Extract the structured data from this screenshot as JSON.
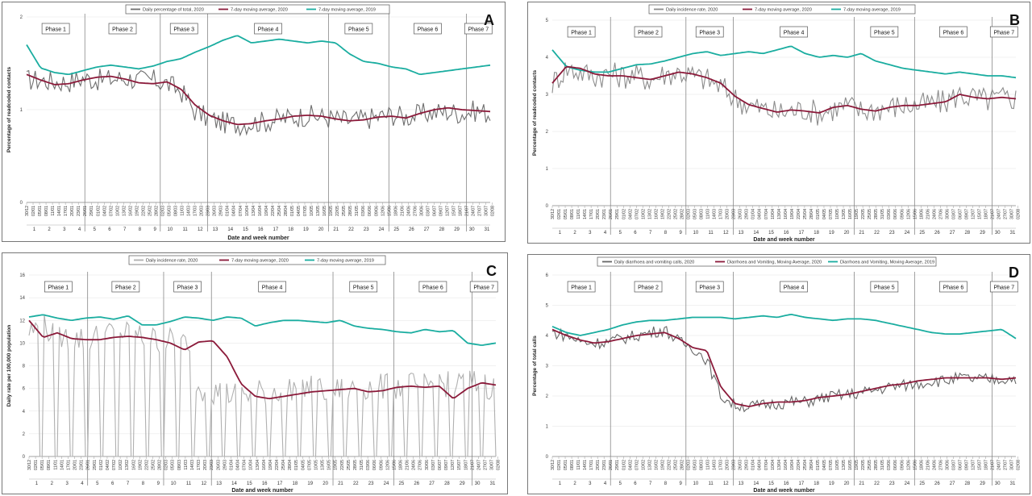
{
  "chart_data": [
    {
      "type": "line",
      "panel_letter": "A",
      "ylabel": "Percentage of readcoded contacts",
      "xlabel": "Date and week number",
      "ylim": [
        0,
        2
      ],
      "yticks": [
        "0",
        "1",
        "2"
      ],
      "legend": [
        "Daily percentage of total, 2020",
        "7-day moving average, 2020",
        "7-day moving average, 2019"
      ],
      "phases": [
        "Phase 1",
        "Phase 2",
        "Phase 3",
        "Phase 4",
        "Phase 5",
        "Phase 6",
        "Phase 7"
      ],
      "phase_boundaries_day": [
        27,
        62,
        84,
        140,
        168,
        204
      ],
      "daily_2020": {
        "base": [
          1.32,
          1.32,
          1.3,
          1.3,
          1.34,
          1.32,
          1.33,
          1.34,
          1.32,
          1.32,
          1.28,
          1.2,
          0.98,
          0.9,
          0.86,
          0.84,
          0.86,
          0.87,
          0.9,
          0.92,
          0.94,
          0.92,
          0.9,
          0.88,
          0.9,
          0.92,
          0.95,
          0.92,
          0.95,
          0.97,
          0.98,
          0.96,
          0.99,
          0.96
        ],
        "noise": 0.12
      },
      "ma_2020": [
        1.38,
        1.32,
        1.27,
        1.28,
        1.32,
        1.35,
        1.36,
        1.33,
        1.29,
        1.28,
        1.3,
        1.22,
        1.05,
        0.94,
        0.88,
        0.84,
        0.85,
        0.88,
        0.9,
        0.93,
        0.94,
        0.93,
        0.9,
        0.88,
        0.89,
        0.92,
        0.93,
        0.91,
        0.96,
        1.0,
        1.02,
        1.0,
        0.99,
        0.98
      ],
      "ma_2019": [
        1.7,
        1.45,
        1.4,
        1.38,
        1.42,
        1.46,
        1.48,
        1.46,
        1.44,
        1.47,
        1.52,
        1.55,
        1.62,
        1.68,
        1.75,
        1.8,
        1.72,
        1.74,
        1.76,
        1.74,
        1.72,
        1.74,
        1.72,
        1.6,
        1.52,
        1.5,
        1.46,
        1.44,
        1.38,
        1.4,
        1.42,
        1.44,
        1.46,
        1.48
      ]
    },
    {
      "type": "line",
      "panel_letter": "B",
      "ylabel": "Percentage of readcoded contacts",
      "xlabel": "Date and week number",
      "ylim": [
        0,
        5
      ],
      "yticks": [
        "0",
        "1",
        "2",
        "3",
        "4",
        "5"
      ],
      "legend": [
        "Daily incidence rate, 2020",
        "7-day moving average, 2020",
        "7-day moving average, 2019"
      ],
      "phases": [
        "Phase 1",
        "Phase 2",
        "Phase 3",
        "Phase 4",
        "Phase 5",
        "Phase 6",
        "Phase 7"
      ],
      "phase_boundaries_day": [
        27,
        62,
        84,
        140,
        168,
        204
      ],
      "daily_2020": {
        "base": [
          3.3,
          3.7,
          3.6,
          3.5,
          3.55,
          3.5,
          3.5,
          3.4,
          3.55,
          3.6,
          3.5,
          3.4,
          3.2,
          2.9,
          2.7,
          2.6,
          2.5,
          2.55,
          2.6,
          2.5,
          2.6,
          2.7,
          2.55,
          2.6,
          2.65,
          2.7,
          2.7,
          2.75,
          2.8,
          3.0,
          2.9,
          2.85,
          2.9,
          2.9
        ],
        "noise": 0.35
      },
      "ma_2020": [
        3.3,
        3.75,
        3.7,
        3.55,
        3.5,
        3.5,
        3.45,
        3.4,
        3.5,
        3.6,
        3.55,
        3.45,
        3.3,
        2.95,
        2.72,
        2.62,
        2.52,
        2.58,
        2.55,
        2.5,
        2.65,
        2.7,
        2.6,
        2.55,
        2.65,
        2.7,
        2.7,
        2.75,
        2.8,
        3.0,
        2.92,
        2.88,
        2.92,
        2.88
      ],
      "ma_2019": [
        4.2,
        3.75,
        3.65,
        3.6,
        3.6,
        3.7,
        3.8,
        3.82,
        3.9,
        4.0,
        4.1,
        4.15,
        4.05,
        4.1,
        4.15,
        4.1,
        4.2,
        4.3,
        4.1,
        4.0,
        4.05,
        4.0,
        4.1,
        3.9,
        3.8,
        3.7,
        3.65,
        3.6,
        3.55,
        3.6,
        3.55,
        3.5,
        3.5,
        3.45
      ]
    },
    {
      "type": "line",
      "panel_letter": "C",
      "ylabel": "Daily rate per 100,000 population",
      "xlabel": "Date and week number",
      "ylim": [
        0,
        16
      ],
      "yticks": [
        "0",
        "2",
        "4",
        "6",
        "8",
        "10",
        "12",
        "14",
        "16"
      ],
      "legend": [
        "Daily incidence rate, 2020",
        "7-day moving average, 2020",
        "7-day moving average, 2019"
      ],
      "phases": [
        "Phase 1",
        "Phase 2",
        "Phase 3",
        "Phase 4",
        "Phase 5",
        "Phase 6",
        "Phase 7"
      ],
      "phase_boundaries_day": [
        27,
        62,
        84,
        140,
        168,
        204
      ],
      "daily_2020": {
        "base": [
          11.0,
          11.5,
          10.5,
          10.4,
          10.3,
          10.6,
          11.0,
          10.8,
          10.5,
          10.3,
          10.2,
          10.0,
          6.0,
          5.8,
          5.5,
          5.5,
          5.6,
          5.7,
          6.0,
          6.2,
          6.0,
          5.8,
          5.8,
          6.0,
          6.2,
          6.1,
          6.2,
          6.3,
          6.3,
          6.5,
          6.2,
          6.6,
          6.4,
          6.0
        ],
        "noise": 1.2,
        "weekend_zero": true
      },
      "ma_2020": [
        12.0,
        10.5,
        10.9,
        10.4,
        10.3,
        10.3,
        10.5,
        10.6,
        10.5,
        10.3,
        10.0,
        9.4,
        10.1,
        10.2,
        8.8,
        6.4,
        5.3,
        5.1,
        5.3,
        5.5,
        5.7,
        5.8,
        5.9,
        6.0,
        5.7,
        5.8,
        6.1,
        6.2,
        6.1,
        6.2,
        5.1,
        6.0,
        6.5,
        6.3
      ],
      "ma_2019": [
        12.3,
        12.5,
        12.2,
        12.0,
        12.2,
        12.3,
        12.1,
        12.4,
        11.6,
        11.6,
        11.9,
        12.3,
        12.2,
        12.0,
        12.3,
        12.2,
        11.5,
        11.8,
        12.0,
        12.0,
        11.9,
        11.8,
        12.0,
        11.5,
        11.3,
        11.2,
        11.0,
        10.9,
        11.2,
        11.0,
        11.1,
        10.0,
        9.8,
        10.0
      ]
    },
    {
      "type": "line",
      "panel_letter": "D",
      "ylabel": "Percentage of total calls",
      "xlabel": "Date and week number",
      "ylim": [
        0,
        6
      ],
      "yticks": [
        "0",
        "1",
        "2",
        "3",
        "4",
        "5",
        "6"
      ],
      "legend": [
        "Daily diarrhoea and vomiting calls, 2020",
        "Diarrhoea and Vomiting, Moving Average, 2020",
        "Diarrhoea and Vomiting, Moving Average, 2019"
      ],
      "phases": [
        "Phase 1",
        "Phase 2",
        "Phase 3",
        "Phase 4",
        "Phase 5",
        "Phase 6",
        "Phase 7"
      ],
      "phase_boundaries_day": [
        27,
        62,
        84,
        140,
        168,
        204
      ],
      "daily_2020": {
        "base": [
          4.1,
          4.0,
          3.8,
          3.75,
          3.8,
          3.9,
          4.0,
          4.1,
          4.2,
          3.8,
          3.6,
          3.2,
          2.0,
          1.7,
          1.65,
          1.7,
          1.75,
          1.8,
          1.8,
          1.9,
          2.0,
          2.05,
          2.1,
          2.2,
          2.3,
          2.35,
          2.4,
          2.5,
          2.5,
          2.6,
          2.55,
          2.55,
          2.55,
          2.6
        ],
        "noise": 0.2
      },
      "ma_2020": [
        4.2,
        4.0,
        3.85,
        3.75,
        3.8,
        3.9,
        4.0,
        4.05,
        4.1,
        3.9,
        3.6,
        3.5,
        2.3,
        1.75,
        1.65,
        1.75,
        1.8,
        1.8,
        1.85,
        1.95,
        2.0,
        2.05,
        2.15,
        2.25,
        2.35,
        2.4,
        2.5,
        2.55,
        2.6,
        2.6,
        2.6,
        2.6,
        2.55,
        2.6
      ],
      "ma_2019": [
        4.3,
        4.1,
        4.0,
        4.1,
        4.2,
        4.35,
        4.45,
        4.5,
        4.5,
        4.55,
        4.6,
        4.6,
        4.6,
        4.55,
        4.6,
        4.65,
        4.6,
        4.7,
        4.6,
        4.55,
        4.5,
        4.55,
        4.55,
        4.5,
        4.4,
        4.3,
        4.2,
        4.1,
        4.05,
        4.05,
        4.1,
        4.15,
        4.2,
        3.9
      ]
    }
  ],
  "date_labels": [
    "30/12",
    "02/01",
    "05/01",
    "08/01",
    "11/01",
    "14/01",
    "17/01",
    "20/01",
    "23/01",
    "26/01",
    "29/01",
    "01/02",
    "04/02",
    "07/02",
    "10/02",
    "13/02",
    "16/02",
    "19/02",
    "22/02",
    "25/02",
    "28/02",
    "02/03",
    "05/03",
    "08/03",
    "11/03",
    "14/03",
    "17/03",
    "20/03",
    "23/03",
    "26/03",
    "29/03",
    "01/04",
    "04/04",
    "07/04",
    "10/04",
    "13/04",
    "16/04",
    "19/04",
    "22/04",
    "25/04",
    "28/04",
    "01/05",
    "04/05",
    "07/05",
    "10/05",
    "13/05",
    "16/05",
    "19/05",
    "22/05",
    "25/05",
    "28/05",
    "31/05",
    "03/06",
    "06/06",
    "09/06",
    "12/06",
    "15/06",
    "18/06",
    "21/06",
    "24/06",
    "27/06",
    "30/06",
    "03/07",
    "06/07",
    "09/07",
    "12/07",
    "15/07",
    "18/07",
    "21/07",
    "24/07",
    "27/07",
    "30/07",
    "02/08"
  ],
  "week_numbers": [
    "1",
    "2",
    "3",
    "4",
    "5",
    "6",
    "7",
    "8",
    "9",
    "10",
    "11",
    "12",
    "13",
    "14",
    "15",
    "16",
    "17",
    "18",
    "19",
    "20",
    "21",
    "22",
    "23",
    "24",
    "25",
    "26",
    "27",
    "28",
    "29",
    "30",
    "31"
  ],
  "colors": {
    "daily_A": "#6e6e6e",
    "daily_B": "#8c8c8c",
    "daily_C": "#b0b0b0",
    "daily_D": "#666666",
    "ma_2020": "#8b1a3a",
    "ma_2019": "#1aada0"
  }
}
